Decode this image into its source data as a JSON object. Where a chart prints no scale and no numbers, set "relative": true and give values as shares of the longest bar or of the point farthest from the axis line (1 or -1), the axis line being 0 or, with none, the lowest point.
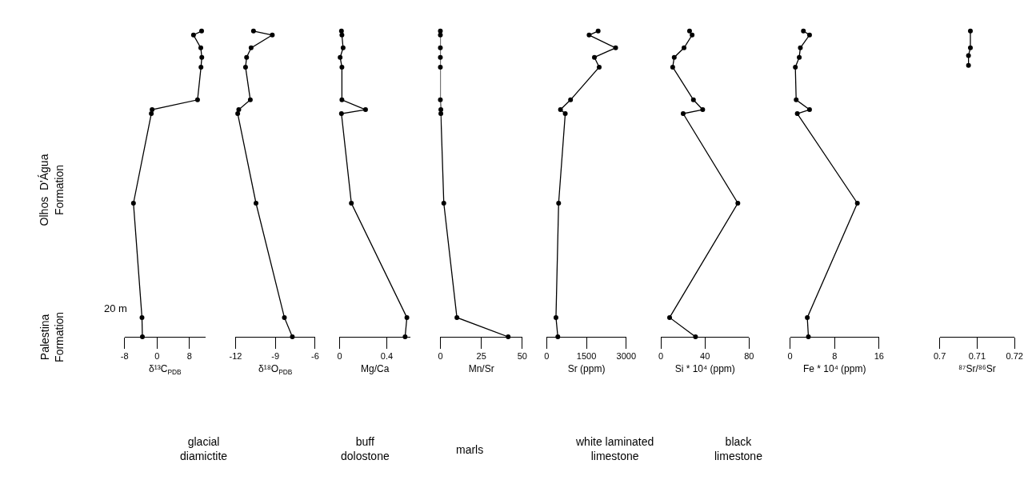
{
  "chart_data": [
    {
      "type": "line",
      "relative": true,
      "marker": "circle",
      "color": "#000000",
      "xlabel": "δ¹³C$_{PDB}$",
      "xlim": [
        -8,
        12
      ],
      "xticks": [
        -8,
        0,
        8
      ],
      "x": [
        11.0,
        9.0,
        10.8,
        11.05,
        10.85,
        10.0,
        -1.2,
        -1.4,
        -5.8,
        -3.7,
        -3.6
      ],
      "values": [
        1,
        0.987,
        0.945,
        0.914,
        0.882,
        0.775,
        0.743,
        0.73,
        0.437,
        0.063,
        0
      ],
      "annotations": [
        "Olhos  D'Água\nFormation",
        "Palestina\nFormation",
        "20 m",
        "glacial\ndiamictite",
        "buff\ndolostone",
        "marls",
        "white laminated\nlimestone",
        "black\nlimestone"
      ]
    },
    {
      "type": "line",
      "relative": true,
      "marker": "circle",
      "color": "#000000",
      "xlabel": "δ¹⁸O$_{PDB}$",
      "xlim": [
        -12,
        -6
      ],
      "xticks": [
        -12,
        -9,
        -6
      ],
      "x": [
        -10.65,
        -9.23,
        -10.83,
        -11.17,
        -11.25,
        -10.89,
        -11.76,
        -11.84,
        -10.46,
        -8.32,
        -7.72
      ],
      "values": [
        1,
        0.987,
        0.945,
        0.914,
        0.882,
        0.775,
        0.743,
        0.73,
        0.437,
        0.063,
        0
      ]
    },
    {
      "type": "line",
      "relative": true,
      "marker": "circle",
      "color": "#000000",
      "xlabel": "Mg/Ca",
      "xlim": [
        0,
        0.6
      ],
      "xticks": [
        0,
        0.4
      ],
      "x": [
        0.016,
        0.02,
        0.03,
        0.005,
        0.02,
        0.02,
        0.22,
        0.016,
        0.1,
        0.57,
        0.555
      ],
      "values": [
        1,
        0.987,
        0.945,
        0.914,
        0.882,
        0.775,
        0.743,
        0.73,
        0.437,
        0.063,
        0
      ]
    },
    {
      "type": "line",
      "relative": true,
      "marker": "circle",
      "color": "#000000",
      "xlabel": "Mn/Sr",
      "xlim": [
        0,
        50
      ],
      "xticks": [
        0,
        25,
        50
      ],
      "x": [
        0,
        0,
        0,
        0,
        0,
        0,
        0.3,
        0.3,
        2.1,
        10.1,
        41.4
      ],
      "values": [
        1,
        0.987,
        0.945,
        0.914,
        0.882,
        0.775,
        0.743,
        0.73,
        0.437,
        0.063,
        0
      ]
    },
    {
      "type": "line",
      "relative": true,
      "marker": "circle",
      "color": "#000000",
      "xlabel": "Sr (ppm)",
      "xlim": [
        0,
        3000
      ],
      "xticks": [
        0,
        1500,
        3000
      ],
      "x": [
        1940,
        1600,
        2600,
        1800,
        1980,
        900,
        520,
        700,
        450,
        350,
        420
      ],
      "values": [
        1,
        0.987,
        0.945,
        0.914,
        0.882,
        0.775,
        0.743,
        0.73,
        0.437,
        0.063,
        0
      ]
    },
    {
      "type": "line",
      "relative": true,
      "marker": "circle",
      "color": "#000000",
      "xlabel": "Si * 10⁴ (ppm)",
      "xlim": [
        0,
        80
      ],
      "xticks": [
        0,
        40,
        80
      ],
      "x": [
        26,
        28.3,
        21,
        12.1,
        10.7,
        29.5,
        37.9,
        20.2,
        69.8,
        7.9,
        31.4
      ],
      "values": [
        1,
        0.987,
        0.945,
        0.914,
        0.882,
        0.775,
        0.743,
        0.73,
        0.437,
        0.063,
        0
      ]
    },
    {
      "type": "line",
      "relative": true,
      "marker": "circle",
      "color": "#000000",
      "xlabel": "Fe * 10⁴ (ppm)",
      "xlim": [
        0,
        16
      ],
      "xticks": [
        0,
        8,
        16
      ],
      "x": [
        2.4,
        3.5,
        1.85,
        1.65,
        0.95,
        1.1,
        3.5,
        1.3,
        12.1,
        3.1,
        3.3
      ],
      "values": [
        1,
        0.987,
        0.945,
        0.914,
        0.882,
        0.775,
        0.743,
        0.73,
        0.437,
        0.063,
        0
      ]
    },
    {
      "type": "line",
      "relative": true,
      "marker": "circle",
      "color": "#000000",
      "xlabel": "⁸⁷Sr/⁸⁶Sr",
      "xlim": [
        0.7,
        0.72
      ],
      "xticks": [
        0.7,
        0.71,
        0.72
      ],
      "x": [
        0.7082,
        0.7082,
        0.7077,
        0.7077
      ],
      "values": [
        1,
        0.945,
        0.92,
        0.888
      ]
    }
  ]
}
